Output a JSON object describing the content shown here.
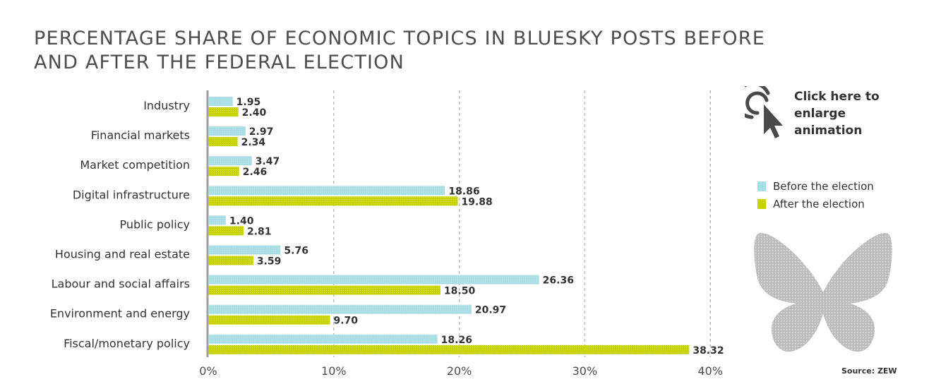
{
  "title": "PERCENTAGE SHARE OF ECONOMIC TOPICS IN BLUESKY POSTS BEFORE AND AFTER THE FEDERAL ELECTION",
  "cta": {
    "label": "Click here to enlarge animation",
    "icon": "click-cursor-icon"
  },
  "legend": [
    {
      "label": "Before the election",
      "color": "#a8dde3"
    },
    {
      "label": "After the election",
      "color": "#c7d300"
    }
  ],
  "logo": "bluesky-butterfly-icon",
  "source": "Source: ZEW",
  "chart_data": {
    "type": "bar",
    "orientation": "horizontal",
    "categories": [
      "Industry",
      "Financial markets",
      "Market competition",
      "Digital infrastructure",
      "Public policy",
      "Housing and real estate",
      "Labour and social affairs",
      "Environment and energy",
      "Fiscal/monetary policy"
    ],
    "series": [
      {
        "name": "Before the election",
        "color": "#a8dde3",
        "values": [
          1.95,
          2.97,
          3.47,
          18.86,
          1.4,
          5.76,
          26.36,
          20.97,
          18.26
        ],
        "labels": [
          "1.95",
          "2.97",
          "3.47",
          "18.86",
          "1.40",
          "5.76",
          "26.36",
          "20.97",
          "18.26"
        ]
      },
      {
        "name": "After the election",
        "color": "#c7d300",
        "values": [
          2.4,
          2.34,
          2.46,
          19.88,
          2.81,
          3.59,
          18.5,
          9.7,
          38.32
        ],
        "labels": [
          "2.40",
          "2.34",
          "2.46",
          "19.88",
          "2.81",
          "3.59",
          "18.50",
          "9.70",
          "38.32"
        ]
      }
    ],
    "xlim": [
      0,
      40
    ],
    "xticks": [
      0,
      10,
      20,
      30,
      40
    ],
    "xtick_labels": [
      "0%",
      "10%",
      "20%",
      "30%",
      "40%"
    ],
    "grid": "vertical dashed",
    "legend_position": "right"
  }
}
